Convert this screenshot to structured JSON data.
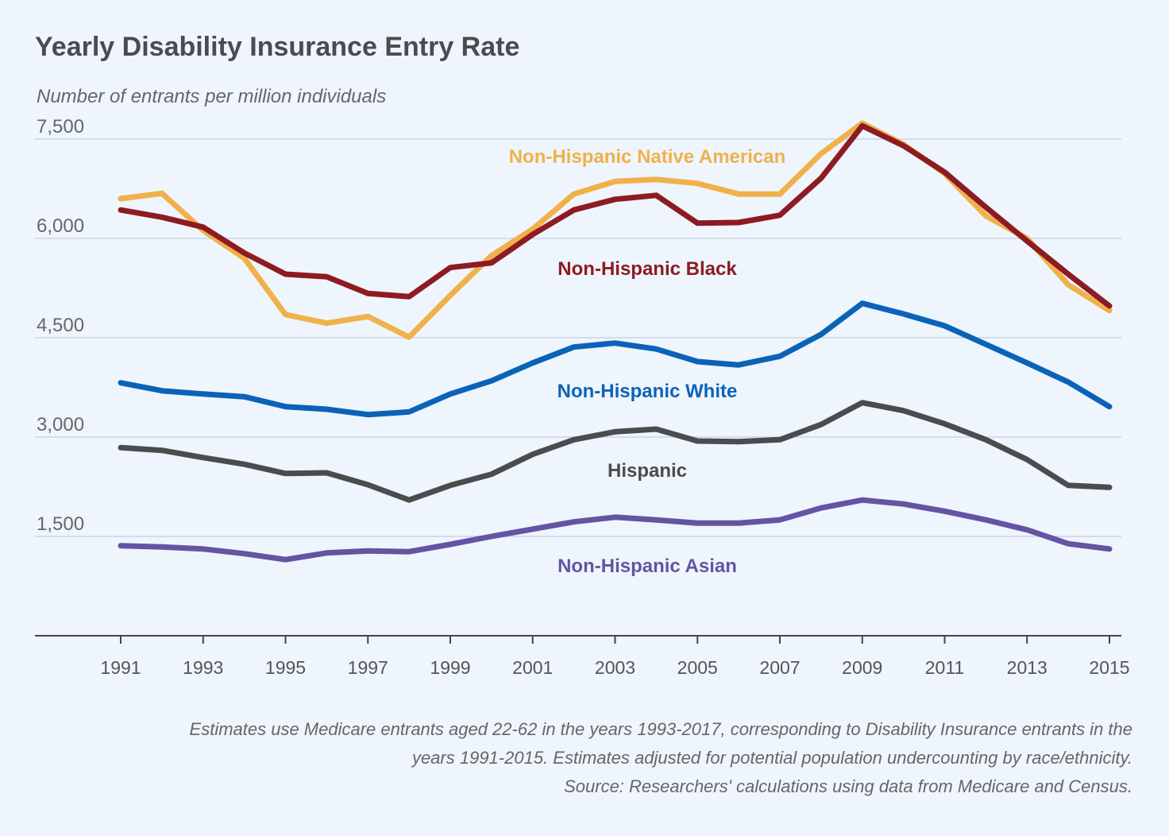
{
  "chart_data": {
    "type": "line",
    "title": "Yearly Disability Insurance Entry Rate",
    "ylabel": "Number of entrants per million individuals",
    "xlabel": "",
    "ylim": [
      0,
      7500
    ],
    "yticks": [
      1500,
      3000,
      4500,
      6000,
      7500
    ],
    "ytick_labels": [
      "1,500",
      "3,000",
      "4,500",
      "6,000",
      "7,500"
    ],
    "xticks": [
      1991,
      1993,
      1995,
      1997,
      1999,
      2001,
      2003,
      2005,
      2007,
      2009,
      2011,
      2013,
      2015
    ],
    "xtick_labels": [
      "1991",
      "1993",
      "1995",
      "1997",
      "1999",
      "2001",
      "2003",
      "2005",
      "2007",
      "2009",
      "2011",
      "2013",
      "2015"
    ],
    "grid": "horizontal",
    "legend": "inline labels",
    "x": [
      1991,
      1992,
      1993,
      1994,
      1995,
      1996,
      1997,
      1998,
      1999,
      2000,
      2001,
      2002,
      2003,
      2004,
      2005,
      2006,
      2007,
      2008,
      2009,
      2010,
      2011,
      2012,
      2013,
      2014,
      2015
    ],
    "series": [
      {
        "name": "Non-Hispanic Native American",
        "color": "#f0b14a",
        "values": [
          6600,
          6680,
          6120,
          5700,
          4850,
          4720,
          4820,
          4510,
          5140,
          5740,
          6140,
          6670,
          6860,
          6890,
          6830,
          6670,
          6670,
          7280,
          7740,
          7420,
          6980,
          6340,
          6000,
          5300,
          4910
        ]
      },
      {
        "name": "Non-Hispanic Black",
        "color": "#8e1b22",
        "values": [
          6430,
          6320,
          6170,
          5780,
          5460,
          5420,
          5170,
          5120,
          5560,
          5630,
          6060,
          6430,
          6590,
          6650,
          6230,
          6240,
          6350,
          6910,
          7700,
          7400,
          7000,
          6470,
          5960,
          5460,
          4980
        ]
      },
      {
        "name": "Non-Hispanic White",
        "color": "#0b63b8",
        "values": [
          3820,
          3700,
          3650,
          3610,
          3460,
          3420,
          3340,
          3380,
          3650,
          3850,
          4120,
          4360,
          4420,
          4330,
          4140,
          4090,
          4220,
          4550,
          5020,
          4860,
          4680,
          4400,
          4120,
          3830,
          3460
        ]
      },
      {
        "name": "Hispanic",
        "color": "#4b4c4e",
        "values": [
          2840,
          2800,
          2690,
          2590,
          2450,
          2460,
          2280,
          2050,
          2270,
          2440,
          2740,
          2960,
          3080,
          3120,
          2940,
          2930,
          2960,
          3190,
          3520,
          3400,
          3200,
          2960,
          2660,
          2270,
          2240
        ]
      },
      {
        "name": "Non-Hispanic Asian",
        "color": "#6454a3",
        "values": [
          1360,
          1340,
          1310,
          1240,
          1150,
          1250,
          1280,
          1270,
          1380,
          1500,
          1610,
          1720,
          1790,
          1750,
          1700,
          1700,
          1750,
          1930,
          2050,
          1990,
          1880,
          1750,
          1600,
          1390,
          1310
        ]
      }
    ]
  },
  "notes": [
    "Estimates use Medicare entrants aged 22-62 in the years 1993-2017, corresponding to Disability Insurance entrants in the",
    "years 1991-2015. Estimates adjusted for potential population undercounting by race/ethnicity.",
    "Source: Researchers' calculations using data from Medicare and Census."
  ]
}
